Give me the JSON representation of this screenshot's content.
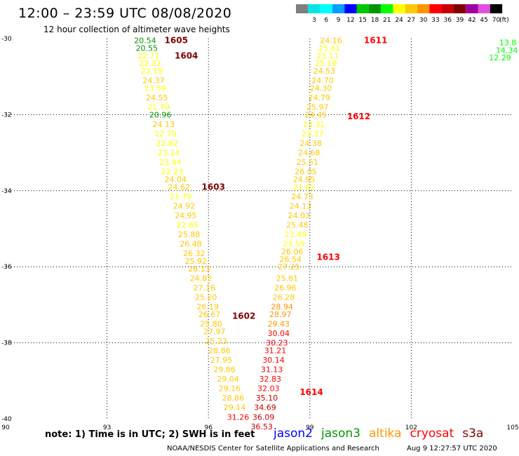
{
  "header": {
    "title": "12:00 – 23:59 UTC 08/08/2020",
    "subtitle": "12 hour collection of altimeter wave heights"
  },
  "colorbar": {
    "unit": "(ft)",
    "bins": [
      {
        "label": "",
        "color": "#808080"
      },
      {
        "label": "3",
        "color": "#00e5e5"
      },
      {
        "label": "6",
        "color": "#00ffff"
      },
      {
        "label": "9",
        "color": "#00a0ff"
      },
      {
        "label": "12",
        "color": "#0000ff"
      },
      {
        "label": "15",
        "color": "#00c800"
      },
      {
        "label": "18",
        "color": "#009600"
      },
      {
        "label": "21",
        "color": "#00ff00"
      },
      {
        "label": "24",
        "color": "#ffff00"
      },
      {
        "label": "27",
        "color": "#ffc800"
      },
      {
        "label": "30",
        "color": "#ff9600"
      },
      {
        "label": "33",
        "color": "#ff0000"
      },
      {
        "label": "36",
        "color": "#c80000"
      },
      {
        "label": "39",
        "color": "#800000"
      },
      {
        "label": "42",
        "color": "#a000a0"
      },
      {
        "label": "45",
        "color": "#e050e0"
      },
      {
        "label": "70",
        "color": "#000000"
      }
    ]
  },
  "axes": {
    "x_ticks": [
      "90",
      "93",
      "96",
      "99",
      "102",
      "105"
    ],
    "y_ticks": [
      "-30",
      "-32",
      "-34",
      "-36",
      "-38",
      "-40"
    ]
  },
  "passes": [
    {
      "id": "1605",
      "color": "#800000",
      "lat": -30.05,
      "lon": 94.7
    },
    {
      "id": "1604",
      "color": "#800000",
      "lat": -30.45,
      "lon": 95.0
    },
    {
      "id": "1603",
      "color": "#800000",
      "lat": -33.9,
      "lon": 95.8
    },
    {
      "id": "1602",
      "color": "#800000",
      "lat": -37.3,
      "lon": 96.7
    },
    {
      "id": "1611",
      "color": "#ff0000",
      "lat": -30.05,
      "lon": 100.6
    },
    {
      "id": "1612",
      "color": "#ff0000",
      "lat": -32.05,
      "lon": 100.1
    },
    {
      "id": "1613",
      "color": "#ff0000",
      "lat": -35.75,
      "lon": 99.2
    },
    {
      "id": "1614",
      "color": "#ff0000",
      "lat": -39.3,
      "lon": 98.7
    }
  ],
  "tracks": [
    {
      "name": "track-1602-1605",
      "points": [
        {
          "v": "20.54",
          "c": "#009600",
          "lat": -30.05,
          "lon": 93.8
        },
        {
          "v": "20.55",
          "c": "#009600",
          "lat": -30.25,
          "lon": 93.85
        },
        {
          "v": "22.71",
          "c": "#ffff00",
          "lat": -30.45,
          "lon": 93.9
        },
        {
          "v": "22.32",
          "c": "#ffff00",
          "lat": -30.65,
          "lon": 93.95
        },
        {
          "v": "22.19",
          "c": "#ffff00",
          "lat": -30.85,
          "lon": 94.0
        },
        {
          "v": "24.37",
          "c": "#ffc800",
          "lat": -31.1,
          "lon": 94.05
        },
        {
          "v": "23.59",
          "c": "#ffff00",
          "lat": -31.3,
          "lon": 94.1
        },
        {
          "v": "24.55",
          "c": "#ffc800",
          "lat": -31.55,
          "lon": 94.15
        },
        {
          "v": "21.79",
          "c": "#ffff00",
          "lat": -31.8,
          "lon": 94.2
        },
        {
          "v": "20.96",
          "c": "#009600",
          "lat": -32.0,
          "lon": 94.25
        },
        {
          "v": "24.13",
          "c": "#ffc800",
          "lat": -32.25,
          "lon": 94.35
        },
        {
          "v": "22.79",
          "c": "#ffff00",
          "lat": -32.5,
          "lon": 94.4
        },
        {
          "v": "22.82",
          "c": "#ffff00",
          "lat": -32.75,
          "lon": 94.45
        },
        {
          "v": "23.14",
          "c": "#ffff00",
          "lat": -33.0,
          "lon": 94.5
        },
        {
          "v": "23.44",
          "c": "#ffff00",
          "lat": -33.25,
          "lon": 94.55
        },
        {
          "v": "22.23",
          "c": "#ffff00",
          "lat": -33.5,
          "lon": 94.6
        },
        {
          "v": "24.04",
          "c": "#ffc800",
          "lat": -33.7,
          "lon": 94.7
        },
        {
          "v": "24.62",
          "c": "#ffc800",
          "lat": -33.9,
          "lon": 94.8
        },
        {
          "v": "21.79",
          "c": "#ffff00",
          "lat": -34.15,
          "lon": 94.85
        },
        {
          "v": "24.92",
          "c": "#ffc800",
          "lat": -34.4,
          "lon": 94.95
        },
        {
          "v": "24.95",
          "c": "#ffc800",
          "lat": -34.65,
          "lon": 95.0
        },
        {
          "v": "22.65",
          "c": "#ffff00",
          "lat": -34.9,
          "lon": 95.05
        },
        {
          "v": "25.88",
          "c": "#ffc800",
          "lat": -35.15,
          "lon": 95.1
        },
        {
          "v": "26.48",
          "c": "#ffc800",
          "lat": -35.4,
          "lon": 95.15
        },
        {
          "v": "26.32",
          "c": "#ffc800",
          "lat": -35.65,
          "lon": 95.25
        },
        {
          "v": "25.92",
          "c": "#ffc800",
          "lat": -35.85,
          "lon": 95.3
        },
        {
          "v": "26.13",
          "c": "#ffc800",
          "lat": -36.05,
          "lon": 95.4
        },
        {
          "v": "24.82",
          "c": "#ffc800",
          "lat": -36.3,
          "lon": 95.45
        },
        {
          "v": "27.16",
          "c": "#ffc800",
          "lat": -36.55,
          "lon": 95.55
        },
        {
          "v": "25.20",
          "c": "#ffc800",
          "lat": -36.8,
          "lon": 95.6
        },
        {
          "v": "26.19",
          "c": "#ffc800",
          "lat": -37.05,
          "lon": 95.65
        },
        {
          "v": "26.67",
          "c": "#ffc800",
          "lat": -37.25,
          "lon": 95.7
        },
        {
          "v": "25.80",
          "c": "#ffc800",
          "lat": -37.5,
          "lon": 95.75
        },
        {
          "v": "27.97",
          "c": "#ffc800",
          "lat": -37.7,
          "lon": 95.85
        },
        {
          "v": "25.23",
          "c": "#ffc800",
          "lat": -37.95,
          "lon": 95.9
        },
        {
          "v": "28.86",
          "c": "#ffc800",
          "lat": -38.2,
          "lon": 96.0
        },
        {
          "v": "27.95",
          "c": "#ffc800",
          "lat": -38.45,
          "lon": 96.05
        },
        {
          "v": "29.86",
          "c": "#ffc800",
          "lat": -38.7,
          "lon": 96.15
        },
        {
          "v": "29.04",
          "c": "#ffc800",
          "lat": -38.95,
          "lon": 96.25
        },
        {
          "v": "29.16",
          "c": "#ffc800",
          "lat": -39.2,
          "lon": 96.3
        },
        {
          "v": "28.86",
          "c": "#ffc800",
          "lat": -39.45,
          "lon": 96.4
        },
        {
          "v": "29.14",
          "c": "#ffc800",
          "lat": -39.7,
          "lon": 96.45
        },
        {
          "v": "31.26",
          "c": "#ff0000",
          "lat": -39.95,
          "lon": 96.55
        }
      ]
    },
    {
      "name": "track-1611-1614",
      "points": [
        {
          "v": "24.16",
          "c": "#ffc800",
          "lat": -30.05,
          "lon": 99.3
        },
        {
          "v": "25.61",
          "c": "#ffff00",
          "lat": -30.25,
          "lon": 99.25
        },
        {
          "v": "25.11",
          "c": "#ffff00",
          "lat": -30.45,
          "lon": 99.2
        },
        {
          "v": "25.16",
          "c": "#ffff00",
          "lat": -30.65,
          "lon": 99.15
        },
        {
          "v": "24.53",
          "c": "#ffc800",
          "lat": -30.85,
          "lon": 99.1
        },
        {
          "v": "24.70",
          "c": "#ffc800",
          "lat": -31.1,
          "lon": 99.05
        },
        {
          "v": "24.30",
          "c": "#ffc800",
          "lat": -31.3,
          "lon": 99.0
        },
        {
          "v": "24.79",
          "c": "#ffc800",
          "lat": -31.55,
          "lon": 98.95
        },
        {
          "v": "25.97",
          "c": "#ffc800",
          "lat": -31.8,
          "lon": 98.9
        },
        {
          "v": "24.45",
          "c": "#ffc800",
          "lat": -32.0,
          "lon": 98.85
        },
        {
          "v": "23.31",
          "c": "#ffff00",
          "lat": -32.25,
          "lon": 98.8
        },
        {
          "v": "23.37",
          "c": "#ffff00",
          "lat": -32.5,
          "lon": 98.75
        },
        {
          "v": "24.38",
          "c": "#ffc800",
          "lat": -32.75,
          "lon": 98.7
        },
        {
          "v": "24.68",
          "c": "#ffc800",
          "lat": -33.0,
          "lon": 98.65
        },
        {
          "v": "25.51",
          "c": "#ffc800",
          "lat": -33.25,
          "lon": 98.6
        },
        {
          "v": "26.05",
          "c": "#ffc800",
          "lat": -33.5,
          "lon": 98.55
        },
        {
          "v": "24.95",
          "c": "#ffc800",
          "lat": -33.7,
          "lon": 98.5
        },
        {
          "v": "21.62",
          "c": "#ffff00",
          "lat": -33.9,
          "lon": 98.5
        },
        {
          "v": "24.73",
          "c": "#ffc800",
          "lat": -34.15,
          "lon": 98.45
        },
        {
          "v": "24.13",
          "c": "#ffc800",
          "lat": -34.4,
          "lon": 98.4
        },
        {
          "v": "24.03",
          "c": "#ffc800",
          "lat": -34.65,
          "lon": 98.35
        },
        {
          "v": "25.48",
          "c": "#ffc800",
          "lat": -34.9,
          "lon": 98.3
        },
        {
          "v": "23.49",
          "c": "#ffff00",
          "lat": -35.15,
          "lon": 98.25
        },
        {
          "v": "23.59",
          "c": "#ffff00",
          "lat": -35.4,
          "lon": 98.2
        },
        {
          "v": "26.06",
          "c": "#ffc800",
          "lat": -35.6,
          "lon": 98.15
        },
        {
          "v": "26.54",
          "c": "#ffc800",
          "lat": -35.8,
          "lon": 98.1
        },
        {
          "v": "27.25",
          "c": "#ffc800",
          "lat": -36.0,
          "lon": 98.05
        },
        {
          "v": "25.61",
          "c": "#ffc800",
          "lat": -36.3,
          "lon": 98.0
        },
        {
          "v": "26.96",
          "c": "#ffc800",
          "lat": -36.55,
          "lon": 97.95
        },
        {
          "v": "26.28",
          "c": "#ffc800",
          "lat": -36.8,
          "lon": 97.9
        },
        {
          "v": "28.94",
          "c": "#ff9600",
          "lat": -37.05,
          "lon": 97.85
        },
        {
          "v": "28.97",
          "c": "#ff9600",
          "lat": -37.25,
          "lon": 97.8
        },
        {
          "v": "29.43",
          "c": "#ff9600",
          "lat": -37.5,
          "lon": 97.75
        },
        {
          "v": "30.04",
          "c": "#ff0000",
          "lat": -37.75,
          "lon": 97.75
        },
        {
          "v": "30.23",
          "c": "#ff0000",
          "lat": -38.0,
          "lon": 97.7
        },
        {
          "v": "31.21",
          "c": "#ff0000",
          "lat": -38.2,
          "lon": 97.65
        },
        {
          "v": "30.14",
          "c": "#ff0000",
          "lat": -38.45,
          "lon": 97.6
        },
        {
          "v": "31.13",
          "c": "#ff0000",
          "lat": -38.7,
          "lon": 97.55
        },
        {
          "v": "32.83",
          "c": "#ff0000",
          "lat": -38.95,
          "lon": 97.5
        },
        {
          "v": "32.03",
          "c": "#ff0000",
          "lat": -39.2,
          "lon": 97.45
        },
        {
          "v": "35.10",
          "c": "#c80000",
          "lat": -39.45,
          "lon": 97.4
        },
        {
          "v": "34.69",
          "c": "#c80000",
          "lat": -39.7,
          "lon": 97.35
        },
        {
          "v": "36.09",
          "c": "#c80000",
          "lat": -39.95,
          "lon": 97.3
        },
        {
          "v": "36.53",
          "c": "#c80000",
          "lat": -40.2,
          "lon": 97.25
        }
      ]
    },
    {
      "name": "track-east-edge",
      "points": [
        {
          "v": "13.8",
          "c": "#00ff00",
          "lat": -30.1,
          "lon": 104.6
        },
        {
          "v": "14.34",
          "c": "#00ff00",
          "lat": -30.3,
          "lon": 104.5
        },
        {
          "v": "12.29",
          "c": "#00ff00",
          "lat": -30.5,
          "lon": 104.3
        }
      ]
    }
  ],
  "footer": {
    "note": "note: 1) Time is in UTC; 2) SWH is in feet",
    "satellites": [
      {
        "name": "jason2",
        "color": "#0000ff"
      },
      {
        "name": "jason3",
        "color": "#009600"
      },
      {
        "name": "altika",
        "color": "#ff9600"
      },
      {
        "name": "cryosat",
        "color": "#ff0000"
      },
      {
        "name": "s3a",
        "color": "#800000"
      }
    ],
    "credit": "NOAA/NESDIS Center for Satellite Applications and Research",
    "timestamp": "Aug  9 12:27:57 UTC 2020"
  }
}
